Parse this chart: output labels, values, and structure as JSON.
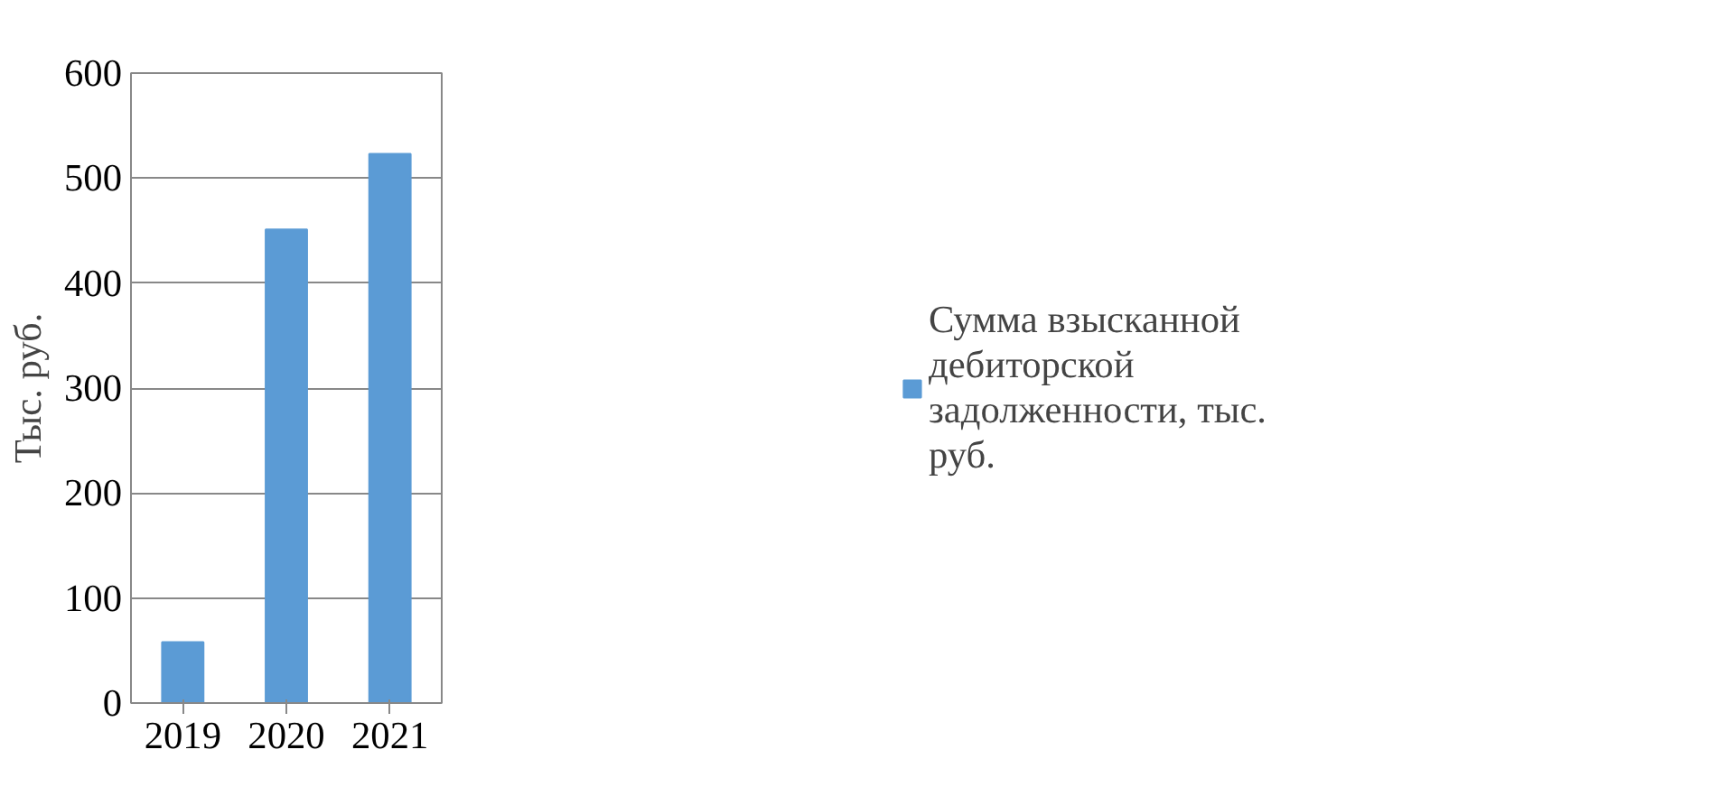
{
  "chart_data": {
    "type": "bar",
    "ylabel": "Тыс. руб.",
    "categories": [
      "2019",
      "2020",
      "2021"
    ],
    "series": [
      {
        "name": "Сумма взысканной дебиторской задолженности, тыс. руб.",
        "color": "#5b9bd5",
        "values": [
          58,
          451,
          523
        ]
      }
    ],
    "ylim": [
      0,
      600
    ],
    "yticks": [
      0,
      100,
      200,
      300,
      400,
      500,
      600
    ],
    "grid": "y",
    "legend": "right"
  }
}
